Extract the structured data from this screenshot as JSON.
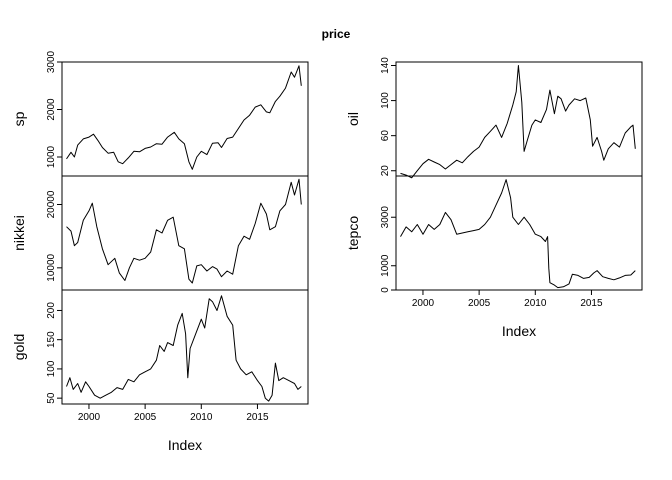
{
  "title": "price",
  "chart_data": [
    {
      "type": "line",
      "column": "left",
      "index_label": "Index",
      "x_ticks": [
        2000,
        2005,
        2010,
        2015
      ],
      "xlim": [
        1997.6,
        2019.5
      ],
      "panels": [
        {
          "name": "sp",
          "ylim": [
            600,
            3000
          ],
          "y_ticks": [
            1000,
            2000,
            3000
          ],
          "points": [
            [
              1998.0,
              960
            ],
            [
              1998.4,
              1100
            ],
            [
              1998.7,
              1000
            ],
            [
              1999.0,
              1250
            ],
            [
              1999.5,
              1380
            ],
            [
              2000.0,
              1420
            ],
            [
              2000.4,
              1480
            ],
            [
              2000.8,
              1350
            ],
            [
              2001.2,
              1200
            ],
            [
              2001.7,
              1080
            ],
            [
              2002.2,
              1100
            ],
            [
              2002.6,
              900
            ],
            [
              2003.0,
              860
            ],
            [
              2003.5,
              980
            ],
            [
              2004.0,
              1120
            ],
            [
              2004.5,
              1110
            ],
            [
              2005.0,
              1180
            ],
            [
              2005.5,
              1210
            ],
            [
              2006.0,
              1280
            ],
            [
              2006.5,
              1270
            ],
            [
              2007.0,
              1420
            ],
            [
              2007.6,
              1520
            ],
            [
              2008.0,
              1380
            ],
            [
              2008.5,
              1280
            ],
            [
              2008.9,
              900
            ],
            [
              2009.2,
              740
            ],
            [
              2009.6,
              1000
            ],
            [
              2010.0,
              1120
            ],
            [
              2010.5,
              1050
            ],
            [
              2011.0,
              1290
            ],
            [
              2011.5,
              1300
            ],
            [
              2011.8,
              1200
            ],
            [
              2012.3,
              1390
            ],
            [
              2012.8,
              1420
            ],
            [
              2013.3,
              1600
            ],
            [
              2013.8,
              1780
            ],
            [
              2014.3,
              1880
            ],
            [
              2014.8,
              2050
            ],
            [
              2015.3,
              2100
            ],
            [
              2015.8,
              1950
            ],
            [
              2016.1,
              1930
            ],
            [
              2016.6,
              2170
            ],
            [
              2017.0,
              2280
            ],
            [
              2017.5,
              2450
            ],
            [
              2018.0,
              2790
            ],
            [
              2018.3,
              2680
            ],
            [
              2018.7,
              2920
            ],
            [
              2018.9,
              2500
            ]
          ]
        },
        {
          "name": "nikkei",
          "ylim": [
            6500,
            24500
          ],
          "y_ticks": [
            10000,
            20000
          ],
          "points": [
            [
              1998.0,
              16500
            ],
            [
              1998.4,
              15800
            ],
            [
              1998.7,
              13500
            ],
            [
              1999.0,
              14000
            ],
            [
              1999.5,
              17500
            ],
            [
              2000.0,
              19000
            ],
            [
              2000.3,
              20200
            ],
            [
              2000.7,
              16500
            ],
            [
              2001.2,
              13000
            ],
            [
              2001.7,
              10500
            ],
            [
              2002.3,
              11500
            ],
            [
              2002.7,
              9200
            ],
            [
              2003.2,
              8000
            ],
            [
              2003.6,
              10000
            ],
            [
              2004.0,
              11500
            ],
            [
              2004.5,
              11200
            ],
            [
              2005.0,
              11500
            ],
            [
              2005.5,
              12500
            ],
            [
              2006.0,
              16000
            ],
            [
              2006.5,
              15500
            ],
            [
              2007.0,
              17500
            ],
            [
              2007.5,
              18000
            ],
            [
              2008.0,
              13500
            ],
            [
              2008.5,
              13000
            ],
            [
              2008.9,
              8200
            ],
            [
              2009.2,
              7600
            ],
            [
              2009.6,
              10300
            ],
            [
              2010.0,
              10500
            ],
            [
              2010.5,
              9500
            ],
            [
              2011.0,
              10200
            ],
            [
              2011.4,
              9800
            ],
            [
              2011.8,
              8600
            ],
            [
              2012.3,
              9500
            ],
            [
              2012.8,
              9000
            ],
            [
              2013.3,
              13500
            ],
            [
              2013.8,
              15000
            ],
            [
              2014.3,
              14500
            ],
            [
              2014.8,
              17000
            ],
            [
              2015.3,
              20200
            ],
            [
              2015.8,
              18500
            ],
            [
              2016.1,
              16000
            ],
            [
              2016.6,
              16500
            ],
            [
              2017.0,
              19000
            ],
            [
              2017.5,
              20000
            ],
            [
              2018.0,
              23500
            ],
            [
              2018.3,
              21500
            ],
            [
              2018.7,
              24000
            ],
            [
              2018.9,
              20000
            ]
          ]
        },
        {
          "name": "gold",
          "ylim": [
            40,
            235
          ],
          "y_ticks": [
            50,
            100,
            150,
            200
          ],
          "points": [
            [
              1998.0,
              70
            ],
            [
              1998.3,
              85
            ],
            [
              1998.6,
              65
            ],
            [
              1999.0,
              75
            ],
            [
              1999.3,
              60
            ],
            [
              1999.7,
              78
            ],
            [
              2000.0,
              70
            ],
            [
              2000.5,
              55
            ],
            [
              2001.0,
              50
            ],
            [
              2001.5,
              55
            ],
            [
              2002.0,
              60
            ],
            [
              2002.5,
              68
            ],
            [
              2003.0,
              65
            ],
            [
              2003.5,
              82
            ],
            [
              2004.0,
              78
            ],
            [
              2004.5,
              90
            ],
            [
              2005.0,
              95
            ],
            [
              2005.5,
              100
            ],
            [
              2006.0,
              115
            ],
            [
              2006.3,
              140
            ],
            [
              2006.7,
              130
            ],
            [
              2007.0,
              145
            ],
            [
              2007.5,
              140
            ],
            [
              2007.9,
              175
            ],
            [
              2008.3,
              195
            ],
            [
              2008.6,
              160
            ],
            [
              2008.8,
              85
            ],
            [
              2009.0,
              135
            ],
            [
              2009.5,
              160
            ],
            [
              2010.0,
              185
            ],
            [
              2010.3,
              170
            ],
            [
              2010.7,
              220
            ],
            [
              2011.0,
              215
            ],
            [
              2011.4,
              200
            ],
            [
              2011.8,
              225
            ],
            [
              2012.3,
              190
            ],
            [
              2012.8,
              175
            ],
            [
              2013.1,
              115
            ],
            [
              2013.5,
              100
            ],
            [
              2014.0,
              90
            ],
            [
              2014.5,
              95
            ],
            [
              2015.0,
              80
            ],
            [
              2015.4,
              70
            ],
            [
              2015.7,
              50
            ],
            [
              2016.0,
              45
            ],
            [
              2016.3,
              55
            ],
            [
              2016.6,
              110
            ],
            [
              2016.9,
              80
            ],
            [
              2017.3,
              85
            ],
            [
              2017.8,
              80
            ],
            [
              2018.3,
              75
            ],
            [
              2018.6,
              65
            ],
            [
              2018.9,
              70
            ]
          ]
        }
      ]
    },
    {
      "type": "line",
      "column": "right",
      "index_label": "Index",
      "x_ticks": [
        2000,
        2005,
        2010,
        2015
      ],
      "xlim": [
        1997.6,
        2019.5
      ],
      "panels": [
        {
          "name": "oil",
          "ylim": [
            14,
            144
          ],
          "y_ticks": [
            20,
            60,
            100,
            140
          ],
          "points": [
            [
              1998.0,
              17
            ],
            [
              1998.5,
              15
            ],
            [
              1999.0,
              12
            ],
            [
              1999.5,
              20
            ],
            [
              2000.0,
              28
            ],
            [
              2000.5,
              33
            ],
            [
              2001.0,
              30
            ],
            [
              2001.5,
              27
            ],
            [
              2002.0,
              22
            ],
            [
              2002.5,
              27
            ],
            [
              2003.0,
              32
            ],
            [
              2003.5,
              29
            ],
            [
              2004.0,
              36
            ],
            [
              2004.5,
              42
            ],
            [
              2005.0,
              47
            ],
            [
              2005.5,
              58
            ],
            [
              2006.0,
              65
            ],
            [
              2006.5,
              72
            ],
            [
              2007.0,
              58
            ],
            [
              2007.5,
              74
            ],
            [
              2008.0,
              95
            ],
            [
              2008.3,
              110
            ],
            [
              2008.5,
              140
            ],
            [
              2008.8,
              98
            ],
            [
              2009.0,
              42
            ],
            [
              2009.3,
              55
            ],
            [
              2009.7,
              72
            ],
            [
              2010.0,
              78
            ],
            [
              2010.5,
              75
            ],
            [
              2011.0,
              90
            ],
            [
              2011.3,
              112
            ],
            [
              2011.7,
              85
            ],
            [
              2012.0,
              105
            ],
            [
              2012.3,
              102
            ],
            [
              2012.7,
              88
            ],
            [
              2013.0,
              95
            ],
            [
              2013.5,
              102
            ],
            [
              2014.0,
              100
            ],
            [
              2014.5,
              103
            ],
            [
              2014.9,
              78
            ],
            [
              2015.1,
              48
            ],
            [
              2015.5,
              58
            ],
            [
              2015.9,
              42
            ],
            [
              2016.1,
              32
            ],
            [
              2016.5,
              45
            ],
            [
              2017.0,
              52
            ],
            [
              2017.5,
              47
            ],
            [
              2018.0,
              63
            ],
            [
              2018.5,
              70
            ],
            [
              2018.7,
              72
            ],
            [
              2018.9,
              45
            ]
          ]
        },
        {
          "name": "tepco",
          "ylim": [
            0,
            4700
          ],
          "y_ticks": [
            0,
            1000,
            3000
          ],
          "points": [
            [
              1998.0,
              2200
            ],
            [
              1998.5,
              2600
            ],
            [
              1999.0,
              2400
            ],
            [
              1999.5,
              2700
            ],
            [
              2000.0,
              2300
            ],
            [
              2000.5,
              2700
            ],
            [
              2001.0,
              2500
            ],
            [
              2001.5,
              2700
            ],
            [
              2002.0,
              3200
            ],
            [
              2002.5,
              2900
            ],
            [
              2003.0,
              2300
            ],
            [
              2003.5,
              2350
            ],
            [
              2004.0,
              2400
            ],
            [
              2004.5,
              2450
            ],
            [
              2005.0,
              2500
            ],
            [
              2005.5,
              2700
            ],
            [
              2006.0,
              3000
            ],
            [
              2006.5,
              3500
            ],
            [
              2007.0,
              4000
            ],
            [
              2007.4,
              4550
            ],
            [
              2007.8,
              3800
            ],
            [
              2008.0,
              3000
            ],
            [
              2008.5,
              2700
            ],
            [
              2009.0,
              3000
            ],
            [
              2009.5,
              2700
            ],
            [
              2010.0,
              2300
            ],
            [
              2010.5,
              2200
            ],
            [
              2010.9,
              2000
            ],
            [
              2011.1,
              2200
            ],
            [
              2011.2,
              900
            ],
            [
              2011.3,
              300
            ],
            [
              2011.7,
              200
            ],
            [
              2012.0,
              100
            ],
            [
              2012.5,
              130
            ],
            [
              2013.0,
              250
            ],
            [
              2013.3,
              650
            ],
            [
              2013.8,
              600
            ],
            [
              2014.3,
              480
            ],
            [
              2014.8,
              520
            ],
            [
              2015.2,
              700
            ],
            [
              2015.5,
              800
            ],
            [
              2016.0,
              550
            ],
            [
              2016.5,
              480
            ],
            [
              2017.0,
              420
            ],
            [
              2017.5,
              500
            ],
            [
              2018.0,
              600
            ],
            [
              2018.5,
              620
            ],
            [
              2018.9,
              800
            ]
          ]
        }
      ]
    }
  ]
}
